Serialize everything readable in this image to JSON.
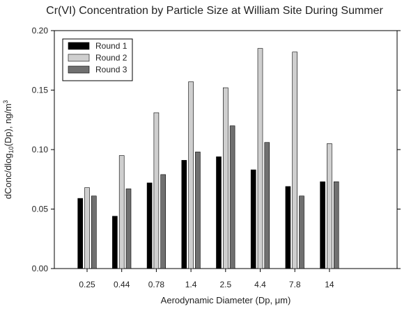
{
  "chart_data": {
    "type": "bar",
    "title": "Cr(VI) Concentration by Particle Size at William Site During Summer",
    "xlabel": "Aerodynamic Diameter (Dp, μm)",
    "ylabel_parts": {
      "prefix": "dConc/dlog",
      "subscript": "10",
      "middle": "(Dp), ng/m",
      "superscript": "3"
    },
    "categories": [
      "0.25",
      "0.44",
      "0.78",
      "1.4",
      "2.5",
      "4.4",
      "7.8",
      "14"
    ],
    "ylim": [
      0,
      0.2
    ],
    "yticks": [
      0.0,
      0.05,
      0.1,
      0.15,
      0.2
    ],
    "ytick_labels": [
      "0.00",
      "0.05",
      "0.10",
      "0.15",
      "0.20"
    ],
    "legend_position": "top-left",
    "grid": false,
    "series": [
      {
        "name": "Round 1",
        "color": "#000000",
        "values": [
          0.059,
          0.044,
          0.072,
          0.091,
          0.094,
          0.083,
          0.069,
          0.073
        ]
      },
      {
        "name": "Round 2",
        "color": "#cfcfcf",
        "values": [
          0.068,
          0.095,
          0.131,
          0.157,
          0.152,
          0.185,
          0.182,
          0.105
        ]
      },
      {
        "name": "Round 3",
        "color": "#707070",
        "values": [
          0.061,
          0.067,
          0.079,
          0.098,
          0.12,
          0.106,
          0.061,
          0.073
        ]
      }
    ]
  }
}
